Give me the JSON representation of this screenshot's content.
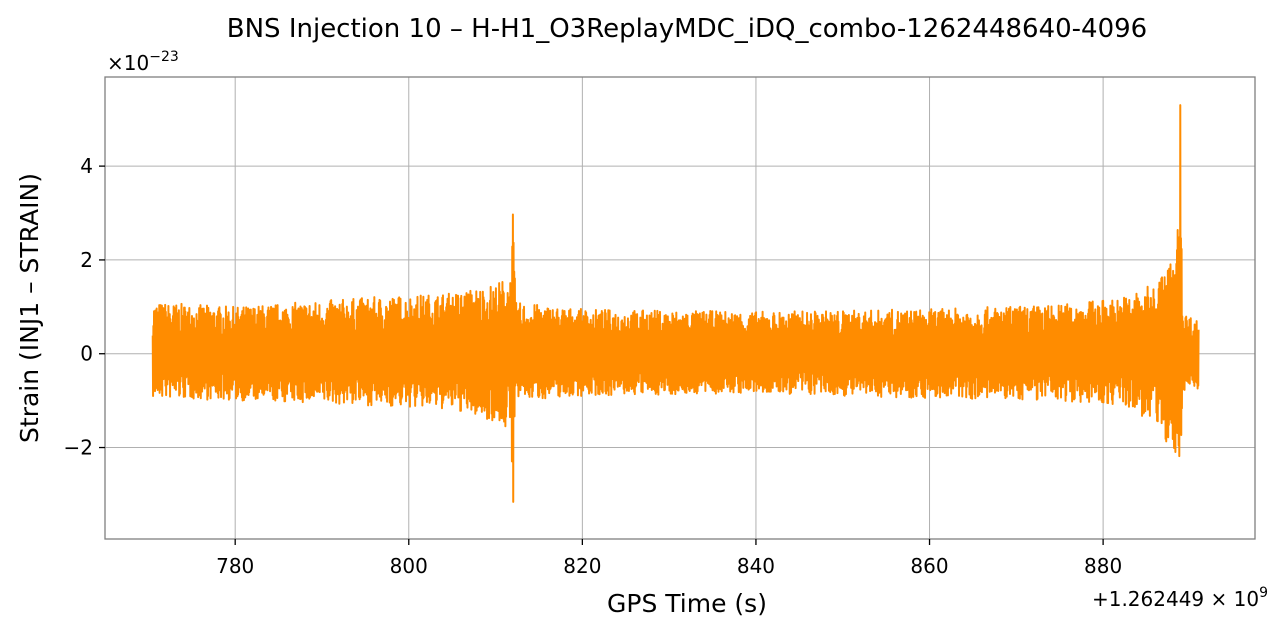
{
  "chart_data": {
    "type": "line",
    "title": "BNS Injection 10 – H-H1_O3ReplayMDC_iDQ_combo-1262448640-4096",
    "xlabel": "GPS Time (s)",
    "ylabel": "Strain (INJ1 – STRAIN)",
    "x_offset_label": "+1.262449 × 10",
    "x_offset_exp": "9",
    "y_multiplier_label": "×10",
    "y_multiplier_exp": "−23",
    "xlim": [
      765,
      897.5
    ],
    "ylim": [
      -3.95,
      5.9
    ],
    "xticks": [
      780,
      800,
      820,
      840,
      860,
      880
    ],
    "xtick_labels": [
      "780",
      "800",
      "820",
      "840",
      "860",
      "880"
    ],
    "yticks": [
      -2,
      0,
      2,
      4
    ],
    "ytick_labels": [
      "−2",
      "0",
      "2",
      "4"
    ],
    "grid": true,
    "color": "#ff8c00",
    "x_range": [
      770.5,
      891.0
    ],
    "envelope": [
      {
        "x": 770.5,
        "upper": 1.1,
        "lower": -0.95
      },
      {
        "x": 780,
        "upper": 1.0,
        "lower": -1.0
      },
      {
        "x": 795,
        "upper": 1.2,
        "lower": -1.1
      },
      {
        "x": 805,
        "upper": 1.3,
        "lower": -1.2
      },
      {
        "x": 810,
        "upper": 1.5,
        "lower": -1.45
      },
      {
        "x": 811.8,
        "upper": 1.7,
        "lower": -1.7
      },
      {
        "x": 812.0,
        "upper": 3.1,
        "lower": -3.5
      },
      {
        "x": 812.3,
        "upper": 1.1,
        "lower": -1.0
      },
      {
        "x": 820,
        "upper": 0.95,
        "lower": -0.9
      },
      {
        "x": 840,
        "upper": 0.9,
        "lower": -0.85
      },
      {
        "x": 860,
        "upper": 0.95,
        "lower": -0.95
      },
      {
        "x": 875,
        "upper": 1.05,
        "lower": -1.0
      },
      {
        "x": 882,
        "upper": 1.2,
        "lower": -1.1
      },
      {
        "x": 886,
        "upper": 1.5,
        "lower": -1.5
      },
      {
        "x": 888.5,
        "upper": 2.2,
        "lower": -2.3
      },
      {
        "x": 888.9,
        "upper": 5.5,
        "lower": -3.3
      },
      {
        "x": 889.2,
        "upper": 0.9,
        "lower": -0.8
      },
      {
        "x": 891.0,
        "upper": 0.7,
        "lower": -0.75
      }
    ]
  }
}
